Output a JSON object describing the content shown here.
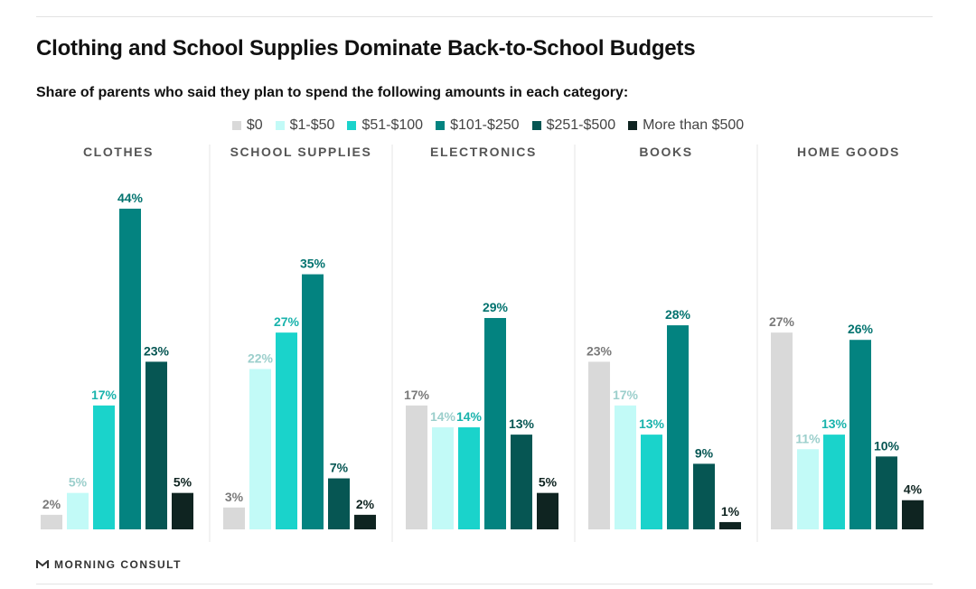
{
  "title": "Clothing and School Supplies Dominate Back-to-School Budgets",
  "subtitle": "Share of parents who said they plan to spend the following amounts in each category:",
  "footer": {
    "brand": "MORNING CONSULT",
    "logo_icon": "morning-consult-logo-icon"
  },
  "chart_data": {
    "type": "bar",
    "value_suffix": "%",
    "y_range": [
      0,
      44
    ],
    "legend_placement": "top-center",
    "grid": false,
    "series": [
      {
        "name": "$0",
        "color": "#d9d9d9",
        "label_color": "#7a7a7a"
      },
      {
        "name": "$1-$50",
        "color": "#c2faf7",
        "label_color": "#9ccfcc"
      },
      {
        "name": "$51-$100",
        "color": "#1ad3cb",
        "label_color": "#19b3ac"
      },
      {
        "name": "$101-$250",
        "color": "#038380",
        "label_color": "#02736f"
      },
      {
        "name": "$251-$500",
        "color": "#065653",
        "label_color": "#065653"
      },
      {
        "name": "More than $500",
        "color": "#0f2421",
        "label_color": "#0f2421"
      }
    ],
    "categories": [
      {
        "name": "CLOTHES",
        "values": [
          2,
          5,
          17,
          44,
          23,
          5
        ]
      },
      {
        "name": "SCHOOL SUPPLIES",
        "values": [
          3,
          22,
          27,
          35,
          7,
          2
        ]
      },
      {
        "name": "ELECTRONICS",
        "values": [
          17,
          14,
          14,
          29,
          13,
          5
        ]
      },
      {
        "name": "BOOKS",
        "values": [
          23,
          17,
          13,
          28,
          9,
          1
        ]
      },
      {
        "name": "HOME GOODS",
        "values": [
          27,
          11,
          13,
          26,
          10,
          4
        ]
      }
    ]
  }
}
